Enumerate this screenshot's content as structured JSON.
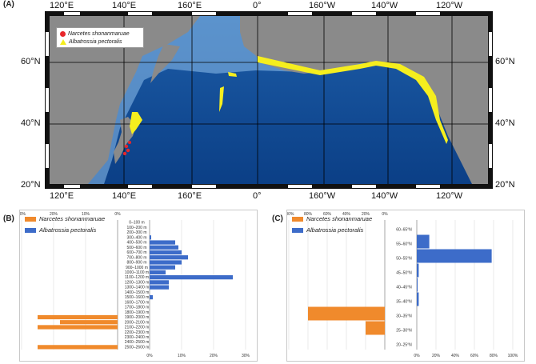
{
  "panels": {
    "a": "(A)",
    "b": "(B)",
    "c": "(C)"
  },
  "map": {
    "top_lon_labels": [
      "120°E",
      "140°E",
      "160°E",
      "0°",
      "160°W",
      "140°W",
      "120°W"
    ],
    "bottom_lon_labels": [
      "120°E",
      "140°E",
      "160°E",
      "0°",
      "160°W",
      "140°W",
      "120°W"
    ],
    "lat_labels": [
      "60°N",
      "40°N",
      "20°N"
    ],
    "legend": [
      {
        "label": "Narcetes shonanmaruae",
        "marker": "red-circle",
        "color": "#e8262a"
      },
      {
        "label": "Albatrossia pectoralis",
        "marker": "yellow-triangle",
        "color": "#f5ee1e"
      }
    ]
  },
  "chart_data": [
    {
      "type": "bar",
      "orientation": "horizontal",
      "panel": "(B)",
      "categories": [
        "0–100 m",
        "100–200 m",
        "200–300 m",
        "300–400 m",
        "400–500 m",
        "500–600 m",
        "600–700 m",
        "700–800 m",
        "800–900 m",
        "900–1000 m",
        "1000–1100 m",
        "1100–1200 m",
        "1200–1300 m",
        "1300–1400 m",
        "1400–1500 m",
        "1500–1600 m",
        "1600–1700 m",
        "1700–1800 m",
        "1800–1900 m",
        "1900–2000 m",
        "2000–2100 m",
        "2100–2200 m",
        "2200–2300 m",
        "2300–2400 m",
        "2400–2500 m",
        "2500–2600 m"
      ],
      "series": [
        {
          "name": "Narcetes shonanmaruae",
          "color": "#f08a2c",
          "direction": "left",
          "values": [
            0,
            0,
            0,
            0,
            0,
            0,
            0,
            0,
            0,
            0,
            0,
            0,
            0,
            0,
            0,
            0,
            0,
            0,
            0,
            25,
            18,
            25,
            0,
            0,
            0,
            25
          ]
        },
        {
          "name": "Albatrossia pectoralis",
          "color": "#3d6cc9",
          "direction": "right",
          "values": [
            0,
            0,
            0,
            0.5,
            8,
            9,
            10,
            12,
            10,
            8,
            5,
            26,
            6,
            6,
            0,
            1,
            0,
            0,
            0,
            0,
            0,
            0,
            0,
            0,
            0,
            0
          ]
        }
      ],
      "left_axis": {
        "range": [
          0,
          30
        ],
        "ticks": [
          "30%",
          "20%",
          "10%",
          "0%"
        ]
      },
      "right_axis": {
        "range": [
          0,
          30
        ],
        "ticks": [
          "0%",
          "10%",
          "20%",
          "30%"
        ]
      },
      "legend_position": "top-left"
    },
    {
      "type": "bar",
      "orientation": "horizontal",
      "panel": "(C)",
      "categories": [
        "60–65°N",
        "55–60°N",
        "50–55°N",
        "45–50°N",
        "40–45°N",
        "35–40°N",
        "30–35°N",
        "25–30°N",
        "20–25°N"
      ],
      "series": [
        {
          "name": "Narcetes shonanmaruae",
          "color": "#f08a2c",
          "direction": "left",
          "values": [
            0,
            0,
            0,
            0,
            0,
            0,
            80,
            20,
            0
          ]
        },
        {
          "name": "Albatrossia pectoralis",
          "color": "#3d6cc9",
          "direction": "right",
          "values": [
            0,
            13,
            78,
            2,
            0.5,
            2,
            0,
            0,
            0
          ]
        }
      ],
      "left_axis": {
        "range": [
          0,
          100
        ],
        "ticks": [
          "100%",
          "80%",
          "60%",
          "40%",
          "20%",
          "0%"
        ]
      },
      "right_axis": {
        "range": [
          0,
          100
        ],
        "ticks": [
          "0%",
          "20%",
          "40%",
          "60%",
          "80%",
          "100%"
        ]
      },
      "legend_position": "top-left"
    }
  ]
}
